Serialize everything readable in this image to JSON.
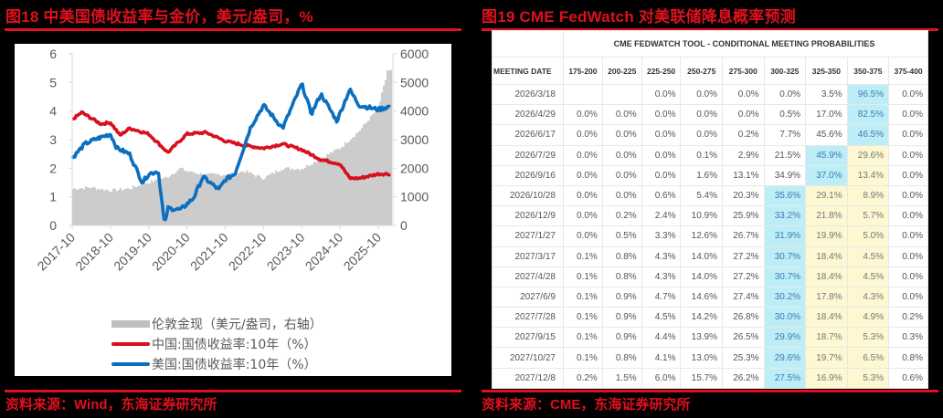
{
  "left_panel": {
    "title": "图18  中美国债收益率与金价，美元/盎司，%",
    "source": "资料来源：Wind，东海证券研究所",
    "legend": [
      {
        "label": "伦敦金现（美元/盎司，右轴）",
        "color": "#bfbfbf",
        "kind": "bar"
      },
      {
        "label": "中国:国债收益率:10年（%）",
        "color": "#d7101e",
        "kind": "line"
      },
      {
        "label": "美国:国债收益率:10年（%）",
        "color": "#0b6fc0",
        "kind": "line"
      }
    ]
  },
  "right_panel": {
    "title": "图19  CME FedWatch 对美联储降息概率预测",
    "source": "资料来源：CME，东海证券研究所",
    "table": {
      "caption": "CME FEDWATCH TOOL - CONDITIONAL MEETING PROBABILITIES",
      "headers": [
        "MEETING DATE",
        "175-200",
        "200-225",
        "225-250",
        "250-275",
        "275-300",
        "300-325",
        "325-350",
        "350-375",
        "375-400"
      ],
      "rows": [
        {
          "date": "2026/3/18",
          "values": [
            "",
            "",
            "0.0%",
            "0.0%",
            "0.0%",
            "0.0%",
            "3.5%",
            "96.5%",
            "0.0%"
          ],
          "hl": {
            "7": "blue"
          }
        },
        {
          "date": "2026/4/29",
          "values": [
            "0.0%",
            "0.0%",
            "0.0%",
            "0.0%",
            "0.0%",
            "0.5%",
            "17.0%",
            "82.5%",
            "0.0%"
          ],
          "hl": {
            "7": "blue"
          }
        },
        {
          "date": "2026/6/17",
          "values": [
            "0.0%",
            "0.0%",
            "0.0%",
            "0.0%",
            "0.2%",
            "7.7%",
            "45.6%",
            "46.5%",
            "0.0%"
          ],
          "hl": {
            "7": "blue"
          }
        },
        {
          "date": "2026/7/29",
          "values": [
            "0.0%",
            "0.0%",
            "0.0%",
            "0.1%",
            "2.9%",
            "21.5%",
            "45.9%",
            "29.6%",
            "0.0%"
          ],
          "hl": {
            "6": "blue",
            "7": "yellow"
          }
        },
        {
          "date": "2026/9/16",
          "values": [
            "0.0%",
            "0.0%",
            "0.0%",
            "1.6%",
            "13.1%",
            "34.9%",
            "37.0%",
            "13.4%",
            "0.0%"
          ],
          "hl": {
            "6": "blue",
            "7": "yellow"
          }
        },
        {
          "date": "2026/10/28",
          "values": [
            "0.0%",
            "0.0%",
            "0.6%",
            "5.4%",
            "20.3%",
            "35.6%",
            "29.1%",
            "8.9%",
            "0.0%"
          ],
          "hl": {
            "5": "blue",
            "6": "yellow",
            "7": "yellow"
          }
        },
        {
          "date": "2026/12/9",
          "values": [
            "0.0%",
            "0.2%",
            "2.4%",
            "10.9%",
            "25.9%",
            "33.2%",
            "21.8%",
            "5.7%",
            "0.0%"
          ],
          "hl": {
            "5": "blue",
            "6": "yellow",
            "7": "yellow"
          }
        },
        {
          "date": "2027/1/27",
          "values": [
            "0.0%",
            "0.5%",
            "3.3%",
            "12.6%",
            "26.7%",
            "31.9%",
            "19.9%",
            "5.0%",
            "0.0%"
          ],
          "hl": {
            "5": "blue",
            "6": "yellow",
            "7": "yellow"
          }
        },
        {
          "date": "2027/3/17",
          "values": [
            "0.1%",
            "0.8%",
            "4.3%",
            "14.0%",
            "27.2%",
            "30.7%",
            "18.4%",
            "4.5%",
            "0.0%"
          ],
          "hl": {
            "5": "blue",
            "6": "yellow",
            "7": "yellow"
          }
        },
        {
          "date": "2027/4/28",
          "values": [
            "0.1%",
            "0.8%",
            "4.3%",
            "14.0%",
            "27.2%",
            "30.7%",
            "18.4%",
            "4.5%",
            "0.0%"
          ],
          "hl": {
            "5": "blue",
            "6": "yellow",
            "7": "yellow"
          }
        },
        {
          "date": "2027/6/9",
          "values": [
            "0.1%",
            "0.9%",
            "4.7%",
            "14.6%",
            "27.4%",
            "30.2%",
            "17.8%",
            "4.3%",
            "0.0%"
          ],
          "hl": {
            "5": "blue",
            "6": "yellow",
            "7": "yellow"
          }
        },
        {
          "date": "2027/7/28",
          "values": [
            "0.1%",
            "0.9%",
            "4.5%",
            "14.2%",
            "26.8%",
            "30.0%",
            "18.4%",
            "4.9%",
            "0.2%"
          ],
          "hl": {
            "5": "blue",
            "6": "yellow",
            "7": "yellow"
          }
        },
        {
          "date": "2027/9/15",
          "values": [
            "0.1%",
            "0.9%",
            "4.4%",
            "13.9%",
            "26.5%",
            "29.9%",
            "18.7%",
            "5.3%",
            "0.3%"
          ],
          "hl": {
            "5": "blue",
            "6": "yellow",
            "7": "yellow"
          }
        },
        {
          "date": "2027/10/27",
          "values": [
            "0.1%",
            "0.8%",
            "4.1%",
            "13.0%",
            "25.3%",
            "29.6%",
            "19.7%",
            "6.5%",
            "0.8%"
          ],
          "hl": {
            "5": "blue",
            "6": "yellow",
            "7": "yellow"
          }
        },
        {
          "date": "2027/12/8",
          "values": [
            "0.2%",
            "1.5%",
            "6.0%",
            "15.7%",
            "26.2%",
            "27.5%",
            "16.9%",
            "5.3%",
            "0.6%"
          ],
          "hl": {
            "5": "blue",
            "6": "yellow",
            "7": "yellow"
          }
        }
      ]
    }
  },
  "chart_data": [
    {
      "type": "line",
      "title": "中美国债收益率与金价，美元/盎司，%",
      "xlabel": "",
      "ylabel": "%",
      "y2label": "美元/盎司",
      "ylim": [
        0,
        6
      ],
      "y2lim": [
        0,
        6000
      ],
      "yticks": [
        0,
        1,
        2,
        3,
        4,
        5,
        6
      ],
      "y2ticks": [
        0,
        1000,
        2000,
        3000,
        4000,
        5000,
        6000
      ],
      "categories": [
        "2017-10",
        "2018-10",
        "2019-10",
        "2020-10",
        "2021-10",
        "2022-10",
        "2023-10",
        "2024-10",
        "2025-10"
      ],
      "grid": false,
      "legend_position": "bottom",
      "series": [
        {
          "name": "伦敦金现（美元/盎司，右轴）",
          "kind": "bar",
          "axis": "right",
          "color": "#bfbfbf",
          "x": [
            "2017-10",
            "2018-04",
            "2018-10",
            "2019-04",
            "2019-10",
            "2020-04",
            "2020-08",
            "2020-10",
            "2021-04",
            "2021-10",
            "2022-04",
            "2022-10",
            "2023-04",
            "2023-10",
            "2024-04",
            "2024-10",
            "2025-04",
            "2025-10",
            "2026-01"
          ],
          "values": [
            1280,
            1330,
            1220,
            1290,
            1500,
            1700,
            2000,
            1900,
            1770,
            1780,
            1900,
            1650,
            2000,
            1980,
            2350,
            2700,
            3300,
            4100,
            5400
          ]
        },
        {
          "name": "中国:国债收益率:10年（%）",
          "kind": "line",
          "axis": "left",
          "color": "#d7101e",
          "x": [
            "2017-10",
            "2018-01",
            "2018-07",
            "2018-10",
            "2019-01",
            "2019-04",
            "2019-10",
            "2020-04",
            "2020-10",
            "2021-04",
            "2021-10",
            "2022-04",
            "2022-10",
            "2023-04",
            "2023-10",
            "2024-04",
            "2024-10",
            "2025-01",
            "2025-04",
            "2025-10",
            "2026-01"
          ],
          "values": [
            3.7,
            3.95,
            3.55,
            3.6,
            3.15,
            3.4,
            3.2,
            2.55,
            3.2,
            3.25,
            2.95,
            2.8,
            2.7,
            2.85,
            2.65,
            2.3,
            2.15,
            1.65,
            1.65,
            1.8,
            1.8
          ]
        },
        {
          "name": "美国:国债收益率:10年（%）",
          "kind": "line",
          "axis": "left",
          "color": "#0b6fc0",
          "x": [
            "2017-10",
            "2018-02",
            "2018-05",
            "2018-10",
            "2018-12",
            "2019-04",
            "2019-08",
            "2019-10",
            "2020-01",
            "2020-03",
            "2020-04",
            "2020-08",
            "2020-12",
            "2021-03",
            "2021-08",
            "2021-10",
            "2022-01",
            "2022-06",
            "2022-10",
            "2023-04",
            "2023-10",
            "2024-01",
            "2024-04",
            "2024-09",
            "2025-01",
            "2025-04",
            "2025-10",
            "2026-01"
          ],
          "values": [
            2.35,
            2.85,
            3.0,
            3.2,
            2.7,
            2.5,
            1.5,
            1.8,
            1.9,
            0.0,
            0.6,
            0.55,
            0.95,
            1.7,
            1.25,
            1.6,
            1.8,
            3.45,
            4.2,
            3.4,
            4.95,
            3.9,
            4.6,
            3.65,
            4.75,
            4.2,
            4.05,
            4.15
          ]
        }
      ]
    },
    {
      "type": "table",
      "title": "CME FEDWATCH TOOL - CONDITIONAL MEETING PROBABILITIES",
      "columns": [
        "MEETING DATE",
        "175-200",
        "200-225",
        "225-250",
        "250-275",
        "275-300",
        "300-325",
        "325-350",
        "350-375",
        "375-400"
      ],
      "rows": [
        [
          "2026/3/18",
          "",
          "",
          "0.0%",
          "0.0%",
          "0.0%",
          "0.0%",
          "3.5%",
          "96.5%",
          "0.0%"
        ],
        [
          "2026/4/29",
          "0.0%",
          "0.0%",
          "0.0%",
          "0.0%",
          "0.0%",
          "0.5%",
          "17.0%",
          "82.5%",
          "0.0%"
        ],
        [
          "2026/6/17",
          "0.0%",
          "0.0%",
          "0.0%",
          "0.0%",
          "0.2%",
          "7.7%",
          "45.6%",
          "46.5%",
          "0.0%"
        ],
        [
          "2026/7/29",
          "0.0%",
          "0.0%",
          "0.0%",
          "0.1%",
          "2.9%",
          "21.5%",
          "45.9%",
          "29.6%",
          "0.0%"
        ],
        [
          "2026/9/16",
          "0.0%",
          "0.0%",
          "0.0%",
          "1.6%",
          "13.1%",
          "34.9%",
          "37.0%",
          "13.4%",
          "0.0%"
        ],
        [
          "2026/10/28",
          "0.0%",
          "0.0%",
          "0.6%",
          "5.4%",
          "20.3%",
          "35.6%",
          "29.1%",
          "8.9%",
          "0.0%"
        ],
        [
          "2026/12/9",
          "0.0%",
          "0.2%",
          "2.4%",
          "10.9%",
          "25.9%",
          "33.2%",
          "21.8%",
          "5.7%",
          "0.0%"
        ],
        [
          "2027/1/27",
          "0.0%",
          "0.5%",
          "3.3%",
          "12.6%",
          "26.7%",
          "31.9%",
          "19.9%",
          "5.0%",
          "0.0%"
        ],
        [
          "2027/3/17",
          "0.1%",
          "0.8%",
          "4.3%",
          "14.0%",
          "27.2%",
          "30.7%",
          "18.4%",
          "4.5%",
          "0.0%"
        ],
        [
          "2027/4/28",
          "0.1%",
          "0.8%",
          "4.3%",
          "14.0%",
          "27.2%",
          "30.7%",
          "18.4%",
          "4.5%",
          "0.0%"
        ],
        [
          "2027/6/9",
          "0.1%",
          "0.9%",
          "4.7%",
          "14.6%",
          "27.4%",
          "30.2%",
          "17.8%",
          "4.3%",
          "0.0%"
        ],
        [
          "2027/7/28",
          "0.1%",
          "0.9%",
          "4.5%",
          "14.2%",
          "26.8%",
          "30.0%",
          "18.4%",
          "4.9%",
          "0.2%"
        ],
        [
          "2027/9/15",
          "0.1%",
          "0.9%",
          "4.4%",
          "13.9%",
          "26.5%",
          "29.9%",
          "18.7%",
          "5.3%",
          "0.3%"
        ],
        [
          "2027/10/27",
          "0.1%",
          "0.8%",
          "4.1%",
          "13.0%",
          "25.3%",
          "29.6%",
          "19.7%",
          "6.5%",
          "0.8%"
        ],
        [
          "2027/12/8",
          "0.2%",
          "1.5%",
          "6.0%",
          "15.7%",
          "26.2%",
          "27.5%",
          "16.9%",
          "5.3%",
          "0.6%"
        ]
      ]
    }
  ],
  "colors": {
    "accent_red": "#e0101e",
    "china_line": "#d7101e",
    "us_line": "#0b6fc0",
    "gold_bar": "#bfbfbf",
    "highlight_blue": "#bdeef7",
    "highlight_yellow": "#fdf7d2"
  }
}
